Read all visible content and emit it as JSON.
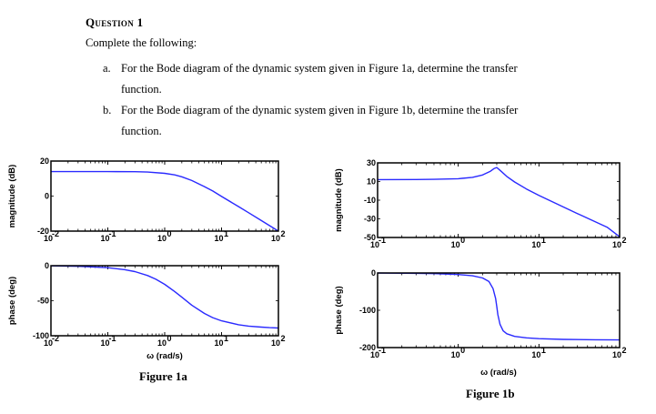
{
  "question": {
    "title": "Question 1",
    "intro": "Complete the following:",
    "items": [
      {
        "label": "a.",
        "text": "For the Bode diagram of the dynamic system given in Figure 1a, determine the transfer",
        "cont": "function."
      },
      {
        "label": "b.",
        "text": "For the Bode diagram of the dynamic system given in Figure 1b, determine the transfer",
        "cont": "function."
      }
    ]
  },
  "figures": {
    "fig1a_caption": "Figure 1a",
    "fig1b_caption": "Figure 1b"
  },
  "colors": {
    "curve": "#2a2aff",
    "frame": "#000000"
  },
  "chart_data": [
    {
      "id": "fig1a-magnitude",
      "type": "line",
      "title": "",
      "xlabel": "",
      "ylabel": "magnitude (dB)",
      "xscale": "log",
      "xlim": [
        0.01,
        100
      ],
      "ylim": [
        -20,
        20
      ],
      "xticks": [
        "10^-2",
        "10^-1",
        "10^0",
        "10^1",
        "10^2"
      ],
      "yticks": [
        20,
        0,
        -20
      ],
      "grid": false,
      "x": [
        0.01,
        0.03,
        0.1,
        0.3,
        0.5,
        1,
        1.5,
        2,
        3,
        5,
        7,
        10,
        20,
        30,
        50,
        70,
        100
      ],
      "y": [
        14,
        14,
        14,
        13.9,
        13.7,
        13.0,
        12.1,
        11.0,
        8.9,
        5.4,
        2.9,
        -0.2,
        -6.0,
        -9.5,
        -14.0,
        -16.9,
        -20.0
      ]
    },
    {
      "id": "fig1a-phase",
      "type": "line",
      "title": "",
      "xlabel": "ω (rad/s)",
      "ylabel": "phase (deg)",
      "xscale": "log",
      "xlim": [
        0.01,
        100
      ],
      "ylim": [
        -100,
        0
      ],
      "xticks": [
        "10^-2",
        "10^-1",
        "10^0",
        "10^1",
        "10^2"
      ],
      "yticks": [
        0,
        -50,
        -100
      ],
      "grid": false,
      "x": [
        0.01,
        0.03,
        0.1,
        0.2,
        0.3,
        0.5,
        0.7,
        1,
        1.5,
        2,
        3,
        5,
        7,
        10,
        20,
        30,
        50,
        70,
        100
      ],
      "y": [
        -0.3,
        -0.9,
        -2.9,
        -5.7,
        -8.5,
        -14.0,
        -19.3,
        -26.6,
        -36.9,
        -45.0,
        -56.3,
        -68.2,
        -74.1,
        -78.7,
        -84.3,
        -86.2,
        -87.7,
        -88.4,
        -88.9
      ]
    },
    {
      "id": "fig1b-magnitude",
      "type": "line",
      "title": "",
      "xlabel": "",
      "ylabel": "magnitude (dB)",
      "xscale": "log",
      "xlim": [
        0.1,
        100
      ],
      "ylim": [
        -50,
        30
      ],
      "xticks": [
        "10^-1",
        "10^0",
        "10^1",
        "10^2"
      ],
      "yticks": [
        30,
        10,
        -10,
        -30,
        -50
      ],
      "grid": false,
      "x": [
        0.1,
        0.3,
        0.5,
        1,
        1.5,
        2,
        2.5,
        2.8,
        3,
        3.3,
        4,
        5,
        7,
        10,
        20,
        30,
        50,
        70,
        100
      ],
      "y": [
        12.0,
        12.1,
        12.3,
        13.0,
        14.5,
        17.0,
        21.0,
        24.0,
        25.0,
        22.0,
        15.5,
        9.5,
        2.0,
        -4.9,
        -17.2,
        -24.3,
        -33.2,
        -39.0,
        -49.2
      ]
    },
    {
      "id": "fig1b-phase",
      "type": "line",
      "title": "",
      "xlabel": "ω (rad/s)",
      "ylabel": "phase (deg)",
      "xscale": "log",
      "xlim": [
        0.1,
        100
      ],
      "ylim": [
        -200,
        0
      ],
      "xticks": [
        "10^-1",
        "10^0",
        "10^1",
        "10^2"
      ],
      "yticks": [
        0,
        -100,
        -200
      ],
      "grid": false,
      "x": [
        0.1,
        0.3,
        0.5,
        1,
        1.5,
        2,
        2.4,
        2.7,
        2.9,
        3,
        3.1,
        3.3,
        3.6,
        4,
        5,
        7,
        10,
        20,
        50,
        100
      ],
      "y": [
        -0.3,
        -1.0,
        -1.8,
        -4.2,
        -7.6,
        -13.5,
        -23,
        -42,
        -68,
        -90,
        -112,
        -138,
        -155,
        -163,
        -170,
        -174,
        -176,
        -178,
        -179,
        -179.5
      ]
    }
  ]
}
